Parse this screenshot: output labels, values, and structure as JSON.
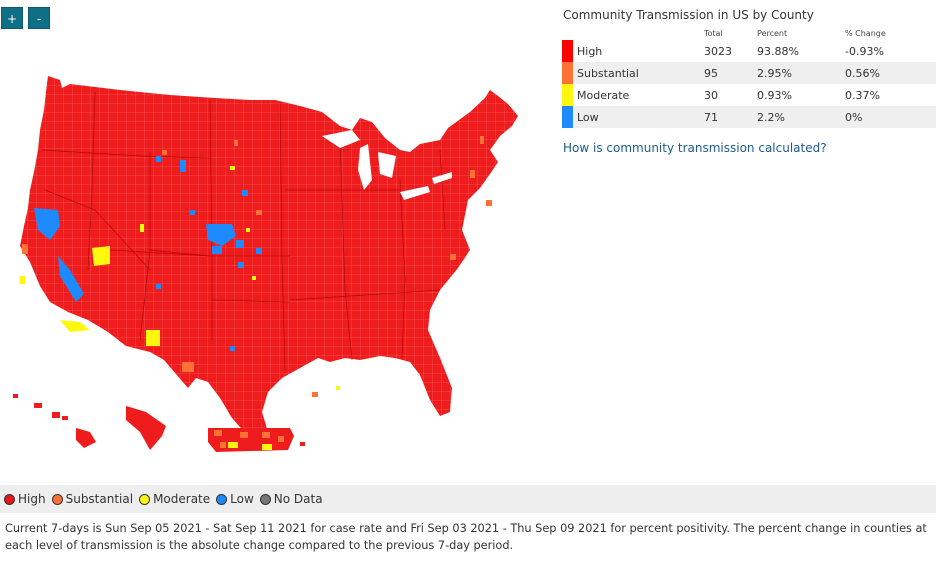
{
  "controls": {
    "zoom_in": "+",
    "zoom_out": "-"
  },
  "panel": {
    "title": "Community Transmission in US by County",
    "headers": {
      "total": "Total",
      "percent": "Percent",
      "change": "% Change"
    },
    "rows": [
      {
        "level": "High",
        "total": "3023",
        "percent": "93.88%",
        "change": "-0.93%",
        "color": "#ff0000"
      },
      {
        "level": "Substantial",
        "total": "95",
        "percent": "2.95%",
        "change": "0.56%",
        "color": "#ff7134"
      },
      {
        "level": "Moderate",
        "total": "30",
        "percent": "0.93%",
        "change": "0.37%",
        "color": "#fff70e"
      },
      {
        "level": "Low",
        "total": "71",
        "percent": "2.2%",
        "change": "0%",
        "color": "#1d8aff"
      }
    ],
    "link": "How is community transmission calculated?"
  },
  "legend": [
    {
      "label": "High",
      "color": "#e8151b"
    },
    {
      "label": "Substantial",
      "color": "#ff7134"
    },
    {
      "label": "Moderate",
      "color": "#fff70e"
    },
    {
      "label": "Low",
      "color": "#1d8aff"
    },
    {
      "label": "No Data",
      "color": "#777777"
    }
  ],
  "footnote": "Current 7-days is Sun Sep 05 2021 - Sat Sep 11 2021 for case rate and Fri Sep 03 2021 - Thu Sep 09 2021 for percent positivity. The percent change in counties at each level of transmission is the absolute change compared to the previous 7-day period."
}
